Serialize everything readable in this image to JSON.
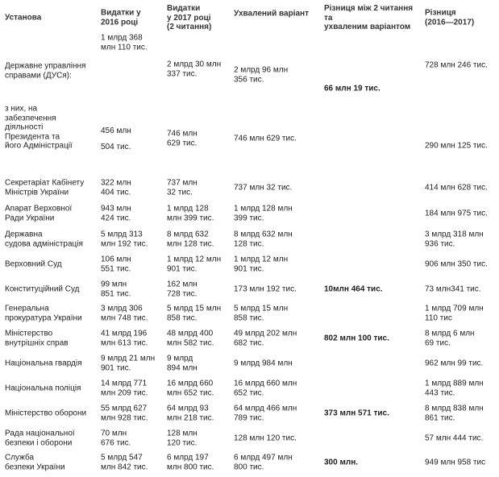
{
  "table": {
    "headers": [
      [
        "Установа"
      ],
      [
        "Видатки у",
        "2016 році"
      ],
      [
        "Видатки",
        "у 2017 році",
        "(2 читання)"
      ],
      [
        "Ухвалений варіант"
      ],
      [
        "Різниця між 2 читання",
        "та",
        "ухваленим варіантом"
      ],
      [
        "Різниця",
        "(2016—2017)"
      ]
    ],
    "rows": [
      [
        [
          "Державне управління",
          "справами (ДУСя):"
        ],
        [
          "1 млрд 368",
          "млн 110 тис."
        ],
        [
          "2 млрд 30 млн",
          "337 тис."
        ],
        [
          "2 млрд 96 млн",
          "356 тис."
        ],
        [
          "66 млн 19 тис."
        ],
        [
          "728 млн 246 тис."
        ]
      ],
      [
        [
          "з них, на",
          "забезпечення",
          "діяльності",
          "Президента та",
          "його Адміністрації"
        ],
        [
          "456 млн",
          "504 тис."
        ],
        [
          "746 млн",
          "629 тис."
        ],
        [
          "746 млн 629 тис."
        ],
        [],
        [
          "290 млн 125 тис."
        ]
      ],
      [
        [
          "Секретаріат Кабінету",
          "Міністрів України"
        ],
        [
          "322 млн",
          "404 тис."
        ],
        [
          "737 млн",
          "32 тис."
        ],
        [
          "737 млн 32 тис."
        ],
        [],
        [
          "414 млн 628 тис."
        ]
      ],
      [
        [
          "Апарат Верховної",
          "Ради України"
        ],
        [
          "943 млн",
          "424 тис."
        ],
        [
          "1 млрд 128",
          "млн 399 тис."
        ],
        [
          "1 млрд 128 млн",
          "399 тис."
        ],
        [],
        [
          "184 млн 975 тис."
        ]
      ],
      [
        [
          "Державна",
          "судова адміністрація"
        ],
        [
          "5 млрд 313",
          "млн 192 тис."
        ],
        [
          "8 млрд 632",
          "млн 128 тис."
        ],
        [
          "8 млрд 632 млн",
          "128 тис."
        ],
        [],
        [
          "3 млрд 318 млн",
          "936 тис."
        ]
      ],
      [
        [
          "Верховний Суд"
        ],
        [
          "106 млн",
          "551 тис."
        ],
        [
          "1 млрд 12 млн",
          "901 тис."
        ],
        [
          "1 млрд 12 млн",
          "901 тис."
        ],
        [],
        [
          "906 млн 350 тис."
        ]
      ],
      [
        [
          "Конституційний Суд"
        ],
        [
          "99 млн",
          "851 тис."
        ],
        [
          "162 млн",
          "728 тис."
        ],
        [
          "173 млн 192 тис."
        ],
        [
          "10млн 464 тис."
        ],
        [
          "73 млн341 тис."
        ]
      ],
      [
        [
          "Генеральна",
          "прокуратура України"
        ],
        [
          "3 млрд 306",
          "млн 748 тис."
        ],
        [
          "5 млрд 15 млн",
          "858 тис."
        ],
        [
          "5 млрд 15 млн",
          "858 тис."
        ],
        [],
        [
          "1 млрд 709 млн",
          "110 тис"
        ]
      ],
      [
        [
          "Міністерство",
          "внутрішніх справ"
        ],
        [
          "41 млрд 196",
          "млн 613 тис."
        ],
        [
          "48 млрд 400",
          "млн 582 тис."
        ],
        [
          "49 млрд 202 млн",
          "682 тис."
        ],
        [
          "802 млн 100 тис."
        ],
        [
          "8 млрд 6 млн",
          "69 тис."
        ]
      ],
      [
        [
          "Національна гвардія"
        ],
        [
          "9 млрд 21 млн",
          "901 тис."
        ],
        [
          "9 млрд",
          "894 млн"
        ],
        [
          "9 млрд 984 млн"
        ],
        [],
        [
          "962 млн 99 тис."
        ]
      ],
      [
        [
          "Національна поліція"
        ],
        [
          "14 млрд 771",
          "млн 209 тис."
        ],
        [
          "16 млрд 660",
          "млн 652 тис."
        ],
        [
          "16 млрд 660 млн",
          "652 тис."
        ],
        [],
        [
          "1 млрд 889 млн",
          "443 тис."
        ]
      ],
      [
        [
          "Міністерство оборони"
        ],
        [
          "55 млрд 627",
          "млн 928 тис."
        ],
        [
          "64 млрд 93",
          "млн 218 тис."
        ],
        [
          "64 млрд 466 млн",
          "789 тис."
        ],
        [
          "373 млн 571 тис."
        ],
        [
          "8 млрд 838 млн",
          "861 тис."
        ]
      ],
      [
        [
          "Рада національної",
          "безпеки і оборони"
        ],
        [
          "70 млн",
          "676 тис."
        ],
        [
          "128 млн",
          "120 тис."
        ],
        [
          "128 млн 120 тис."
        ],
        [],
        [
          "57 млн 444 тис."
        ]
      ],
      [
        [
          "Служба",
          "безпеки України"
        ],
        [
          "5 млрд 547",
          "млн 842 тис."
        ],
        [
          "6 млрд 197",
          "млн 800 тис."
        ],
        [
          "6 млрд 497 млн",
          "800 тис."
        ],
        [
          "300 млн."
        ],
        [
          "949 млн 958 тис"
        ]
      ]
    ]
  }
}
